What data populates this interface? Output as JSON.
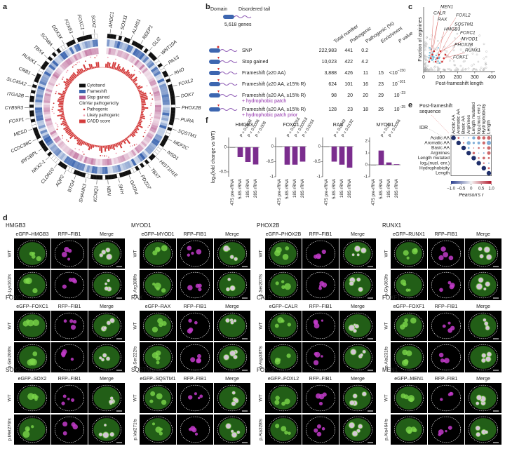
{
  "panel_labels": [
    "a",
    "b",
    "c",
    "d",
    "e",
    "f"
  ],
  "panel_a": {
    "genes": [
      "AHDC1",
      "SOX11",
      "ALMS1",
      "REEP1",
      "GLI2",
      "WNT10A",
      "PAX3",
      "RHO",
      "FOXL2",
      "DOK7",
      "PHOX2B",
      "PURA",
      "SQSTM1",
      "MEF2C",
      "NSD1",
      "HIST1H1E",
      "TBXT",
      "PDZD7",
      "GATA4",
      "SHH",
      "NBN",
      "KCNQ1",
      "SHANK3",
      "BTG4",
      "AQP2",
      "CLDN10",
      "NKX2-1",
      "IRF2BPL",
      "CCDC88C",
      "MESD",
      "FOXF1",
      "CYB5R3",
      "ITGA2B",
      "SLC45A2",
      "CRB1",
      "RUNX1",
      "TBX4",
      "SCN8A",
      "DDX3X",
      "FOXE1",
      "FOXC1",
      "SOX2"
    ],
    "legend": [
      "Cytoband",
      "Frameshift",
      "Stop gained",
      "ClinVar pathogenicity",
      "Pathogenic",
      "Likely pathogenic",
      "CADD score"
    ]
  },
  "panel_b": {
    "domain": "Domain",
    "tail": "Disordered tail",
    "gene_count": "5,618 genes",
    "headers": [
      "Total number",
      "Pathogenic",
      "Pathogenic (%)",
      "Enrichment",
      "P value"
    ],
    "rows": [
      {
        "name": "SNP",
        "cells": [
          "222,983",
          "441",
          "0.2"
        ]
      },
      {
        "name": "Stop gained",
        "cells": [
          "10,023",
          "422",
          "4.2"
        ]
      },
      {
        "name": "Frameshift (≥20 AA)",
        "cells": [
          "3,888",
          "426",
          "11",
          "15"
        ],
        "p": {
          "prefix": "<",
          "base": "10",
          "exp": "−150"
        }
      },
      {
        "name": "Frameshift (≥20 AA, ≥15% R)",
        "cells": [
          "624",
          "101",
          "16",
          "23"
        ],
        "p": {
          "base": "10",
          "exp": "−101"
        }
      },
      {
        "name": "Frameshift (≥20 AA, ≥15% R)",
        "note": "+ hydrophobic patch",
        "cells": [
          "98",
          "20",
          "20",
          "29"
        ],
        "p": {
          "base": "10",
          "exp": "−23"
        }
      },
      {
        "name": "Frameshift (≥20 AA, ≥15% R)",
        "note": "+ hydrophobic patch prior",
        "cells": [
          "128",
          "23",
          "18",
          "26"
        ],
        "p": {
          "base": "10",
          "exp": "−25"
        }
      }
    ]
  },
  "panel_c": {
    "xlabel": "Post-frameshift length",
    "ylabel": "Fraction of arginines",
    "xlim": [
      0,
      420
    ],
    "xticks": [
      0,
      100,
      200,
      300,
      400
    ],
    "genes": [
      "MEN1",
      "CALR",
      "RAX",
      "FOXL2",
      "SQSTM1",
      "HMGB3",
      "FOXC1",
      "MYOD1",
      "PHOX2B",
      "RUNX1",
      "FOXF1"
    ]
  },
  "panel_d": {
    "channel": "RFP–FIB1",
    "merge": "Merge",
    "wt": "WT",
    "blocks": [
      {
        "gene": "HMGB3",
        "header": "eGFP–HMGB3",
        "mutation": "p.Lys161fs"
      },
      {
        "gene": "MYOD1",
        "header": "eGFP–MYOD1",
        "mutation": "p.Arg188fs"
      },
      {
        "gene": "PHOX2B",
        "header": "eGFP–PHOX2B",
        "mutation": "p.Ser207fs"
      },
      {
        "gene": "RUNX1",
        "header": "eGFP–RUNX1",
        "mutation": "p.Gly363fs"
      },
      {
        "gene": "FOXC1",
        "header": "eGFP–FOXC1",
        "mutation": "p.Gln200fs"
      },
      {
        "gene": "RAX",
        "header": "eGFP–RAX",
        "mutation": "p.Ser222fs"
      },
      {
        "gene": "CALR",
        "header": "eGFP–CALR",
        "mutation": "p.Asp387fs"
      },
      {
        "gene": "FOXF1",
        "header": "eGFP–FOXF1",
        "mutation": "p.Ala231fs"
      },
      {
        "gene": "SOX2",
        "header": "eGFP–SOX2",
        "mutation": "p.Met276fs"
      },
      {
        "gene": "SQSTM1",
        "header": "eGFP–SQSTM1",
        "mutation": "p.Val271fs"
      },
      {
        "gene": "FOXL2",
        "header": "eGFP–FOXL2",
        "mutation": "p.Ala328fs"
      },
      {
        "gene": "MEN1",
        "header": "eGFP–MEN1",
        "mutation": "p.Ala464fs"
      }
    ]
  },
  "panel_e": {
    "post": [
      "Post-frameshift",
      "sequence"
    ],
    "idr": "IDR",
    "features": [
      "Acidic AA",
      "Aromatic AA",
      "Basic AA",
      "Arginines",
      "Length mutated",
      "log₂(nucl. enr.)",
      "Hydrophobicity",
      "Length"
    ],
    "cbar_label": "Pearson's r",
    "cbar_lim": [
      -1,
      1
    ],
    "cbar_ticks": [
      {
        "value": -1,
        "label": "−1.0"
      },
      {
        "value": -0.5,
        "label": "−0.5"
      },
      0,
      0.5,
      {
        "value": 1,
        "label": "1.0"
      }
    ]
  },
  "panel_f": {
    "ylabel": "log₂(fold change vs WT)",
    "bar_color": "#7b2d8e",
    "categories": [
      "47S pre-rRNA",
      "5.8S rRNA",
      "18S rRNA",
      "28S rRNA"
    ],
    "charts": [
      {
        "type": "bar",
        "title": "HMGB3",
        "values": [
          0,
          -0.2,
          -0.3,
          -0.35
        ],
        "ylim": [
          -0.6,
          0.2
        ],
        "yticks": [
          -0.5,
          0
        ],
        "pvalues": [
          "P = 0.0098",
          "P = 0.0096",
          "P = 0.008"
        ]
      },
      {
        "type": "bar",
        "title": "FOXC1",
        "values": [
          0,
          -0.6,
          -0.6,
          -0.5
        ],
        "ylim": [
          -1,
          0.3
        ],
        "yticks": [
          -1,
          -0.5,
          0
        ],
        "pvalues": [
          "P = 0.00016",
          "P = 0.00016",
          "P = 0.0016"
        ]
      },
      {
        "type": "bar",
        "title": "RAX",
        "values": [
          0,
          -0.5,
          -0.6,
          -0.7
        ],
        "ylim": [
          -1,
          0.3
        ],
        "yticks": [
          -1,
          -0.5,
          0
        ],
        "pvalues": [
          "P = 0.0049",
          "P = 0.0132"
        ]
      },
      {
        "type": "bar",
        "title": "MYOD1",
        "values": [
          0,
          1.2,
          0.2,
          0.05
        ],
        "ylim": [
          -1,
          2.3
        ],
        "yticks": [
          -1,
          0,
          1,
          2
        ],
        "pvalues": [
          "P = 0.05",
          "P = 0.0056"
        ]
      }
    ]
  }
}
